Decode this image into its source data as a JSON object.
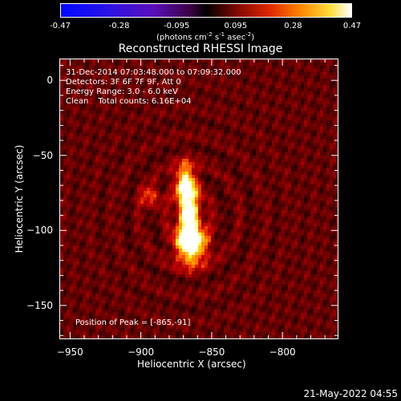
{
  "colorbar": {
    "units_main": "(photons cm",
    "units_exp1": "-2",
    "units_mid": " s",
    "units_exp2": "-1",
    "units_tail": " asec",
    "units_exp3": "-2",
    "units_close": ")",
    "ticks": [
      "-0.47",
      "-0.28",
      "-0.095",
      "0.095",
      "0.28",
      "0.47"
    ],
    "range": [
      -0.47,
      0.47
    ],
    "colormap": "red-temperature with blue negatives"
  },
  "title": "Reconstructed RHESSI Image",
  "info": {
    "time": "31-Dec-2014 07:03:48.000 to 07:09:32.000",
    "detectors": "Detectors: 3F 6F 7F 9F, Att 0",
    "energy": "Energy Range: 3.0 - 6.0 keV",
    "clean_label": "Clean",
    "counts": "Total counts: 6.16E+04",
    "peak": "Position of Peak = [-865,-91]"
  },
  "chart_data": {
    "type": "heatmap",
    "title": "Reconstructed RHESSI Image",
    "xlabel": "Heliocentric X (arcsec)",
    "ylabel": "Heliocentric Y (arcsec)",
    "xlim": [
      -957,
      -761
    ],
    "ylim": [
      -172,
      14
    ],
    "x_ticks": [
      -950,
      -900,
      -850,
      -800
    ],
    "y_ticks": [
      0,
      -50,
      -100,
      -150
    ],
    "x_tick_labels": [
      "−950",
      "−900",
      "−850",
      "−800"
    ],
    "y_tick_labels": [
      "0",
      "−50",
      "−100",
      "−150"
    ],
    "peak": [
      -865,
      -91
    ],
    "sources": [
      {
        "x": -866,
        "y": -90,
        "sx": 5,
        "sy": 14,
        "amp": 0.47
      },
      {
        "x": -864,
        "y": -110,
        "sx": 8,
        "sy": 9,
        "amp": 0.37
      },
      {
        "x": -869,
        "y": -68,
        "sx": 5,
        "sy": 9,
        "amp": 0.31
      },
      {
        "x": -893,
        "y": -78,
        "sx": 5,
        "sy": 5,
        "amp": 0.18
      }
    ],
    "background": 0.08,
    "grid": false
  },
  "timestamp": "21-May-2022 04:55"
}
